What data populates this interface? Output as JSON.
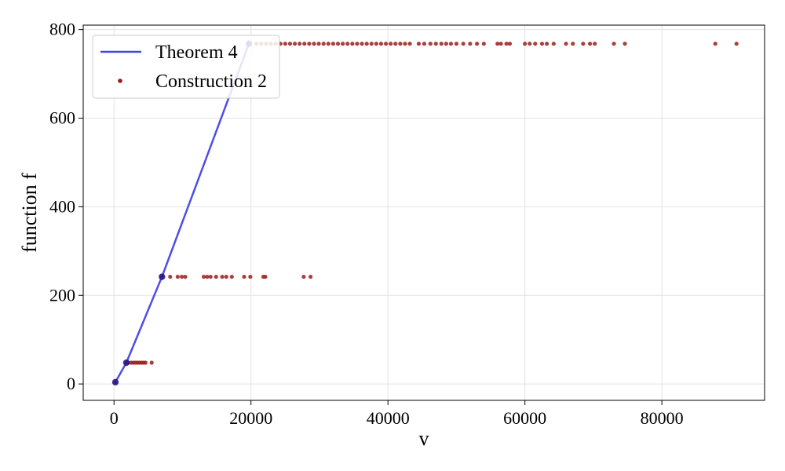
{
  "chart_data": {
    "type": "scatter",
    "xlabel": "v",
    "ylabel": "function f",
    "xlim": [
      -4500,
      95000
    ],
    "ylim": [
      -37,
      810
    ],
    "xticks": [
      0,
      20000,
      40000,
      60000,
      80000
    ],
    "yticks": [
      0,
      200,
      400,
      600,
      800
    ],
    "grid": true,
    "legend_position": "top-left",
    "series": [
      {
        "name": "Theorem 4",
        "kind": "line",
        "color": "#4444e6",
        "x": [
          200,
          1800,
          7000,
          19700
        ],
        "y": [
          4,
          48,
          242,
          768
        ]
      },
      {
        "name": "Construction 2",
        "kind": "scatter",
        "color": "#9b1c1c",
        "x": [
          200,
          1800,
          2100,
          2500,
          2800,
          3100,
          3400,
          3700,
          4000,
          4300,
          4600,
          5500,
          7000,
          8200,
          9300,
          9900,
          10400,
          13100,
          13600,
          14100,
          14900,
          15800,
          16400,
          17200,
          19000,
          19900,
          21800,
          22100,
          27700,
          28700,
          19700,
          20800,
          21500,
          22200,
          22900,
          23600,
          24300,
          25000,
          25700,
          26400,
          27100,
          27800,
          28500,
          29200,
          29900,
          30600,
          31300,
          32000,
          32700,
          33400,
          34100,
          34800,
          35500,
          36200,
          36900,
          37600,
          38300,
          39000,
          39700,
          40400,
          41100,
          41800,
          42500,
          43200,
          44500,
          45300,
          46200,
          47000,
          47800,
          48500,
          49200,
          50000,
          51000,
          52000,
          53000,
          54000,
          56000,
          56500,
          57300,
          57800,
          60000,
          60700,
          61500,
          62500,
          63200,
          64200,
          66000,
          67000,
          68500,
          69500,
          70200,
          73000,
          74600,
          87800,
          90900
        ],
        "y": [
          4,
          48,
          48,
          48,
          48,
          48,
          48,
          48,
          48,
          48,
          48,
          48,
          242,
          242,
          242,
          242,
          242,
          242,
          242,
          242,
          242,
          242,
          242,
          242,
          242,
          242,
          242,
          242,
          242,
          242,
          768,
          768,
          768,
          768,
          768,
          768,
          768,
          768,
          768,
          768,
          768,
          768,
          768,
          768,
          768,
          768,
          768,
          768,
          768,
          768,
          768,
          768,
          768,
          768,
          768,
          768,
          768,
          768,
          768,
          768,
          768,
          768,
          768,
          768,
          768,
          768,
          768,
          768,
          768,
          768,
          768,
          768,
          768,
          768,
          768,
          768,
          768,
          768,
          768,
          768,
          768,
          768,
          768,
          768,
          768,
          768,
          768,
          768,
          768,
          768,
          768,
          768,
          768,
          768,
          768
        ]
      }
    ]
  }
}
